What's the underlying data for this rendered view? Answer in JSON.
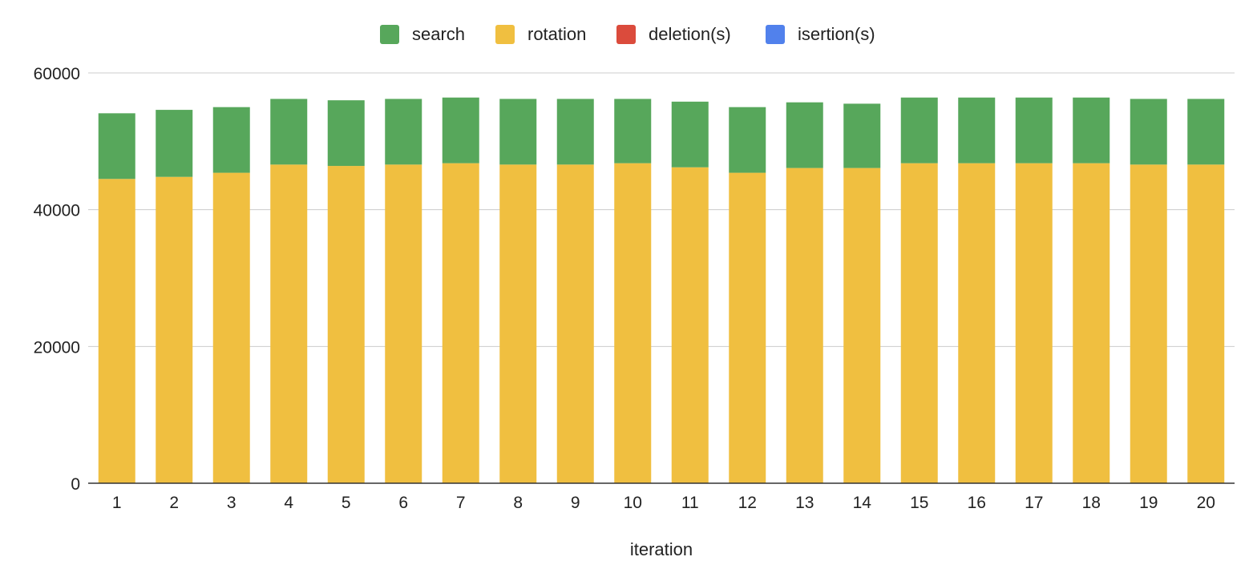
{
  "chart_data": {
    "type": "bar",
    "stacked": true,
    "categories": [
      "1",
      "2",
      "3",
      "4",
      "5",
      "6",
      "7",
      "8",
      "9",
      "10",
      "11",
      "12",
      "13",
      "14",
      "15",
      "16",
      "17",
      "18",
      "19",
      "20"
    ],
    "series": [
      {
        "name": "rotation",
        "color": "#f0bf40",
        "values": [
          44500,
          44800,
          45400,
          46600,
          46400,
          46600,
          46800,
          46600,
          46600,
          46800,
          46200,
          45400,
          46100,
          46100,
          46800,
          46800,
          46800,
          46800,
          46600,
          46600
        ]
      },
      {
        "name": "search",
        "color": "#57a75b",
        "values": [
          9600,
          9800,
          9600,
          9600,
          9600,
          9600,
          9600,
          9600,
          9600,
          9400,
          9600,
          9600,
          9600,
          9400,
          9600,
          9600,
          9600,
          9600,
          9600,
          9600
        ]
      },
      {
        "name": "deletion(s)",
        "color": "#db4b3c",
        "values": [
          0,
          0,
          0,
          0,
          0,
          0,
          0,
          0,
          0,
          0,
          0,
          0,
          0,
          0,
          0,
          0,
          0,
          0,
          0,
          0
        ]
      },
      {
        "name": "isertion(s)",
        "color": "#5181ec",
        "values": [
          0,
          0,
          0,
          0,
          0,
          0,
          0,
          0,
          0,
          0,
          0,
          0,
          0,
          0,
          0,
          0,
          0,
          0,
          0,
          0
        ]
      }
    ],
    "legend": [
      "search",
      "rotation",
      "deletion(s)",
      "isertion(s)"
    ],
    "legend_position": "top-center",
    "xlabel": "iteration",
    "ylabel": "",
    "ylim": [
      0,
      60000
    ],
    "yticks": [
      "0",
      "20000",
      "40000",
      "60000"
    ],
    "grid": true
  }
}
